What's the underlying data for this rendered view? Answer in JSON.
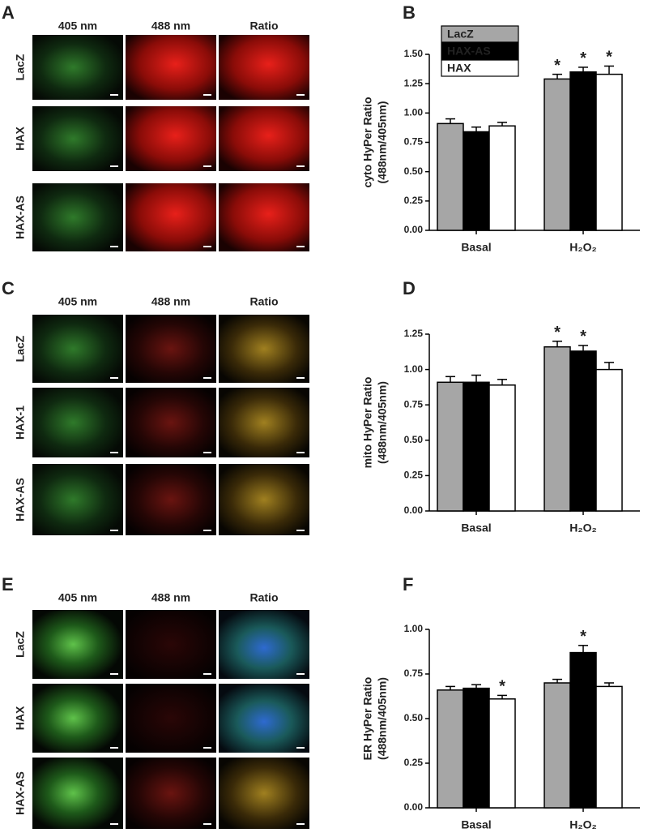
{
  "image_panels": [
    {
      "panel": "A",
      "columns": [
        "405 nm",
        "488 nm",
        "Ratio"
      ],
      "rows": [
        "LacZ",
        "HAX",
        "HAX-AS"
      ]
    },
    {
      "panel": "C",
      "columns": [
        "405 nm",
        "488 nm",
        "Ratio"
      ],
      "rows": [
        "LacZ",
        "HAX-1",
        "HAX-AS"
      ]
    },
    {
      "panel": "E",
      "columns": [
        "405 nm",
        "488 nm",
        "Ratio"
      ],
      "rows": [
        "LacZ",
        "HAX",
        "HAX-AS"
      ]
    }
  ],
  "chart_data": [
    {
      "type": "bar",
      "panel": "B",
      "ylabel": [
        "cyto HyPer Ratio",
        "(488nm/405nm)"
      ],
      "categories": [
        "Basal",
        "H₂O₂"
      ],
      "legend": true,
      "series": [
        {
          "name": "LacZ",
          "color": "#a6a6a6",
          "values": [
            0.91,
            1.29
          ],
          "errors": [
            0.04,
            0.04
          ],
          "significance": [
            null,
            "*"
          ]
        },
        {
          "name": "HAX-AS",
          "color": "#000000",
          "values": [
            0.84,
            1.35
          ],
          "errors": [
            0.04,
            0.04
          ],
          "significance": [
            null,
            "*"
          ]
        },
        {
          "name": "HAX",
          "color": "#ffffff",
          "values": [
            0.89,
            1.33
          ],
          "errors": [
            0.03,
            0.07
          ],
          "significance": [
            null,
            "*"
          ]
        }
      ],
      "ylim": [
        0,
        1.5
      ],
      "yticks": [
        {
          "value": 0,
          "label": "0.00"
        },
        {
          "value": 0.25,
          "label": "0.25"
        },
        {
          "value": 0.5,
          "label": "0.50"
        },
        {
          "value": 0.75,
          "label": "0.75"
        },
        {
          "value": 1,
          "label": "1.00"
        },
        {
          "value": 1.25,
          "label": "1.25"
        },
        {
          "value": 1.5,
          "label": "1.50"
        }
      ]
    },
    {
      "type": "bar",
      "panel": "D",
      "ylabel": [
        "mito HyPer Ratio",
        "(488nm/405nm)"
      ],
      "categories": [
        "Basal",
        "H₂O₂"
      ],
      "legend": false,
      "series": [
        {
          "color": "#a6a6a6",
          "values": [
            0.91,
            1.16
          ],
          "errors": [
            0.04,
            0.04
          ],
          "significance": [
            null,
            "*"
          ]
        },
        {
          "color": "#000000",
          "values": [
            0.91,
            1.13
          ],
          "errors": [
            0.05,
            0.04
          ],
          "significance": [
            null,
            "*"
          ]
        },
        {
          "color": "#ffffff",
          "values": [
            0.89,
            1.0
          ],
          "errors": [
            0.04,
            0.05
          ],
          "significance": [
            null,
            null
          ]
        }
      ],
      "ylim": [
        0,
        1.25
      ],
      "yticks": [
        {
          "value": 0,
          "label": "0.00"
        },
        {
          "value": 0.25,
          "label": "0.25"
        },
        {
          "value": 0.5,
          "label": "0.50"
        },
        {
          "value": 0.75,
          "label": "0.75"
        },
        {
          "value": 1,
          "label": "1.00"
        },
        {
          "value": 1.25,
          "label": "1.25"
        }
      ]
    },
    {
      "type": "bar",
      "panel": "F",
      "ylabel": [
        "ER HyPer Ratio",
        "(488nm/405nm)"
      ],
      "categories": [
        "Basal",
        "H₂O₂"
      ],
      "legend": false,
      "series": [
        {
          "color": "#a6a6a6",
          "values": [
            0.66,
            0.7
          ],
          "errors": [
            0.02,
            0.02
          ],
          "significance": [
            null,
            null
          ]
        },
        {
          "color": "#000000",
          "values": [
            0.67,
            0.87
          ],
          "errors": [
            0.02,
            0.04
          ],
          "significance": [
            null,
            "*"
          ]
        },
        {
          "color": "#ffffff",
          "values": [
            0.61,
            0.68
          ],
          "errors": [
            0.02,
            0.02
          ],
          "significance": [
            "*",
            null
          ]
        }
      ],
      "ylim": [
        0,
        1
      ],
      "yticks": [
        {
          "value": 0,
          "label": "0.00"
        },
        {
          "value": 0.25,
          "label": "0.25"
        },
        {
          "value": 0.5,
          "label": "0.50"
        },
        {
          "value": 0.75,
          "label": "0.75"
        },
        {
          "value": 1,
          "label": "1.00"
        }
      ]
    }
  ]
}
